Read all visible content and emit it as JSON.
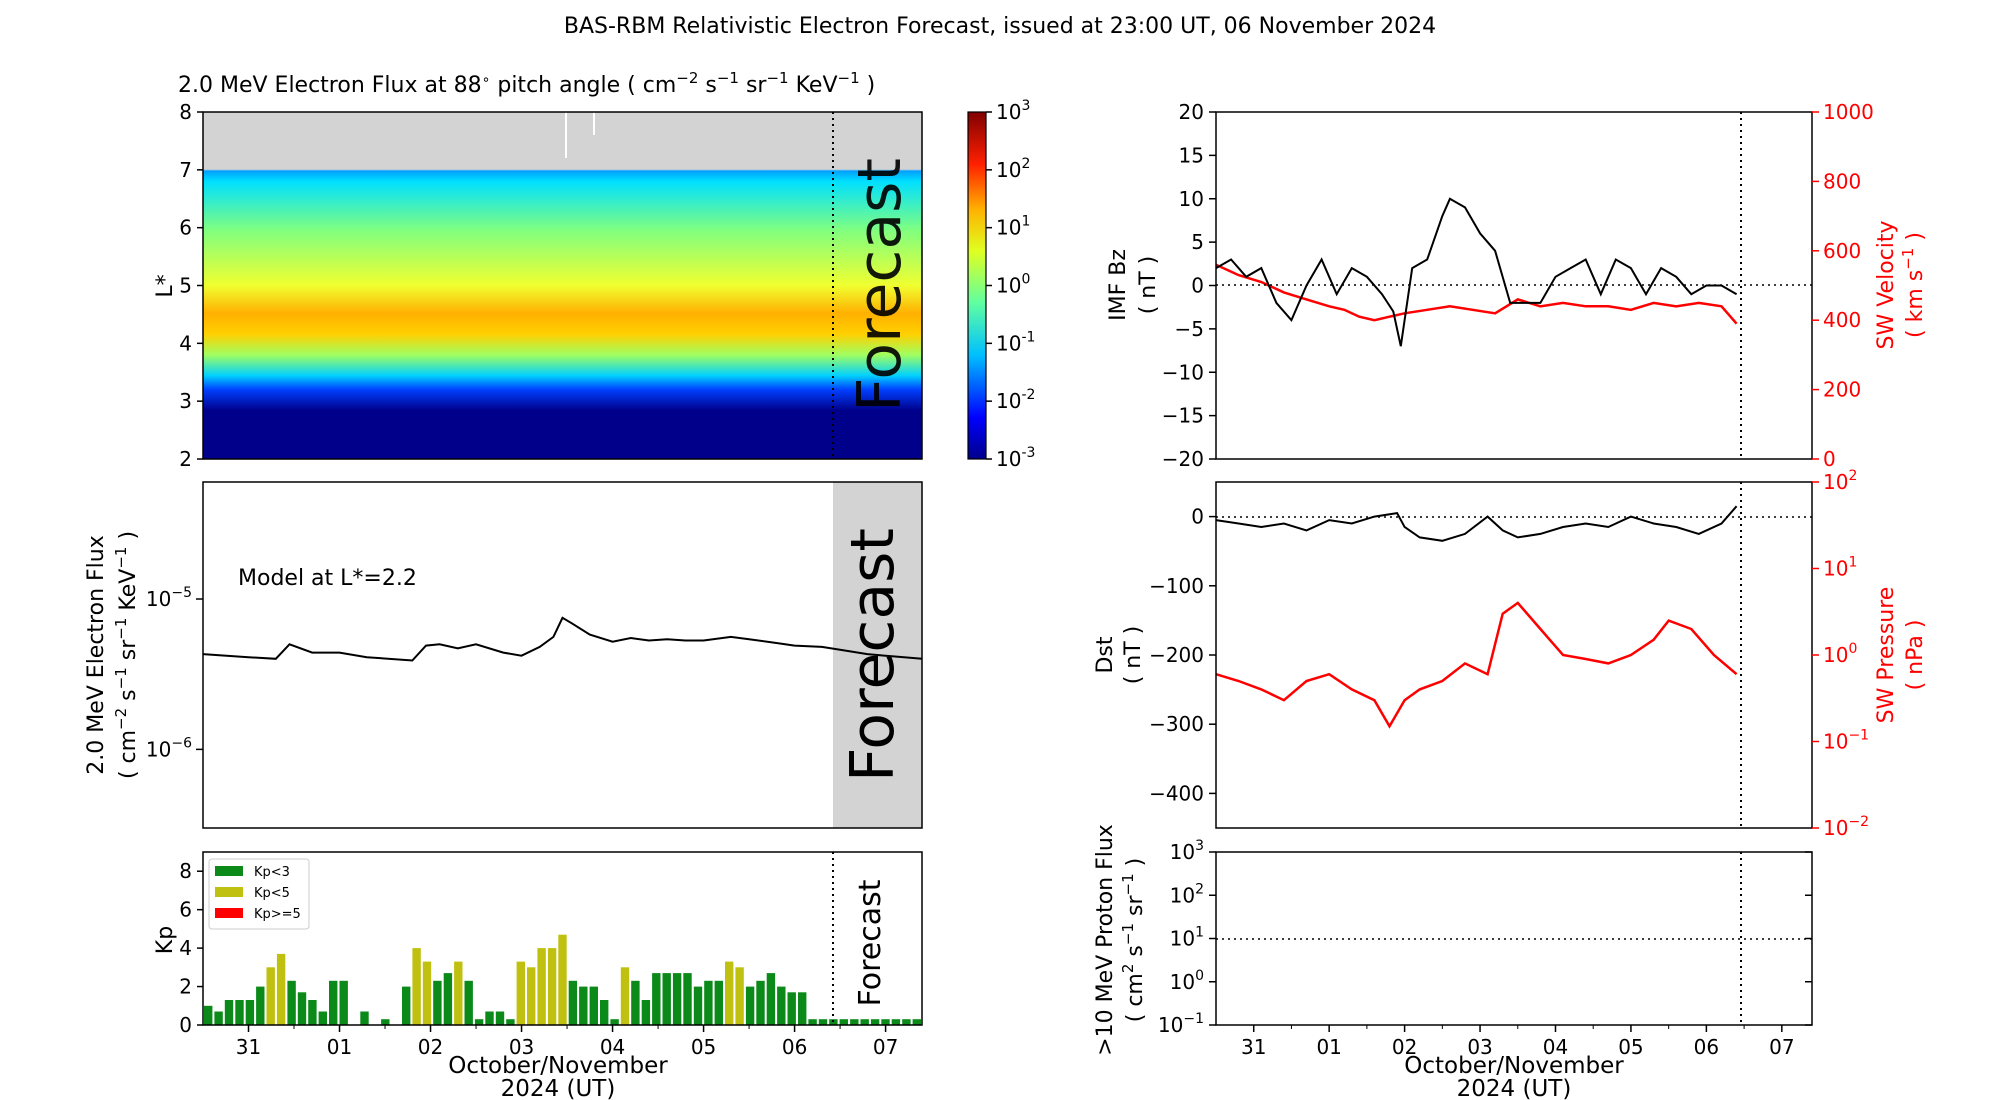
{
  "title": "BAS-RBM Relativistic Electron Forecast, issued at 23:00 UT, 06 November 2024",
  "colors": {
    "kp_low": "#0b8a1a",
    "kp_mid": "#c0c010",
    "kp_high": "#ff0000",
    "sw": "#ff0000",
    "forecast_shade": "#d3d3d3",
    "forecast_text": "#b4b4b4",
    "no_data": "#d3d3d3"
  },
  "time_axis": {
    "tick_labels": [
      "31",
      "01",
      "02",
      "03",
      "04",
      "05",
      "06",
      "07"
    ],
    "xlabel_line1": "October/November",
    "xlabel_line2": "2024 (UT)",
    "forecast_start": 6.5
  },
  "chart_data": [
    {
      "id": "flux_spectrogram",
      "type": "heatmap",
      "title_prefix": "2.0 MeV Electron Flux at 88",
      "title_deg": "∘",
      "title_mid": "pitch angle (",
      "title_unit": "cm",
      "title_end": ")",
      "ylabel": "L*",
      "y_ticks": [
        "2",
        "3",
        "4",
        "5",
        "6",
        "7",
        "8"
      ],
      "ylim": [
        2,
        8
      ],
      "no_data_above_L": 7,
      "forecast_label": "Forecast",
      "colorbar": {
        "scale": "log",
        "range": [
          0.001,
          1000
        ],
        "ticks": [
          "-3",
          "-2",
          "-1",
          "0",
          "1",
          "2",
          "3"
        ],
        "base": "10"
      },
      "notable_levels": [
        {
          "L": 2.5,
          "log10_flux": -3
        },
        {
          "L": 3.3,
          "log10_flux": -1.5
        },
        {
          "L": 4.2,
          "log10_flux": 1.4
        },
        {
          "L": 5.5,
          "log10_flux": 0.5
        },
        {
          "L": 6.9,
          "log10_flux": -0.8
        }
      ]
    },
    {
      "id": "flux_timeseries",
      "type": "line",
      "ylabel_line1": "2.0 MeV Electron Flux",
      "ylabel_line2_prefix": "( cm",
      "ylabel_line2_suffix": ")",
      "yscale": "log",
      "ylim": [
        3e-07,
        6e-05
      ],
      "y_ticks": [
        {
          "base": "10",
          "exp": "−5",
          "value": 1e-05
        },
        {
          "base": "10",
          "exp": "−6",
          "value": 1e-06
        }
      ],
      "annotation": "Model at L*=2.2",
      "forecast_label": "Forecast",
      "x": [
        -0.5,
        0.0,
        0.3,
        0.45,
        0.7,
        1.0,
        1.3,
        1.8,
        1.95,
        2.1,
        2.3,
        2.5,
        2.8,
        3.0,
        3.2,
        3.35,
        3.45,
        3.55,
        3.75,
        4.0,
        4.2,
        4.4,
        4.6,
        4.8,
        5.0,
        5.3,
        5.5,
        5.8,
        6.0,
        6.3,
        6.5,
        6.8,
        7.0,
        7.4
      ],
      "y": [
        4.3e-06,
        4.1e-06,
        4e-06,
        5e-06,
        4.4e-06,
        4.4e-06,
        4.1e-06,
        3.9e-06,
        4.9e-06,
        5e-06,
        4.7e-06,
        5e-06,
        4.4e-06,
        4.2e-06,
        4.8e-06,
        5.6e-06,
        7.5e-06,
        6.9e-06,
        5.8e-06,
        5.2e-06,
        5.5e-06,
        5.3e-06,
        5.4e-06,
        5.3e-06,
        5.3e-06,
        5.6e-06,
        5.4e-06,
        5.1e-06,
        4.9e-06,
        4.8e-06,
        4.6e-06,
        4.3e-06,
        4.2e-06,
        4e-06
      ]
    },
    {
      "id": "kp",
      "type": "bar",
      "ylabel": "Kp",
      "ylim": [
        0,
        9
      ],
      "y_ticks": [
        "0",
        "2",
        "4",
        "6",
        "8"
      ],
      "legend": [
        "Kp<3",
        "Kp<5",
        "Kp>=5"
      ],
      "forecast_label": "Forecast",
      "values": [
        1.0,
        0.7,
        1.3,
        1.3,
        1.3,
        2.0,
        3.0,
        3.7,
        2.3,
        1.7,
        1.3,
        0.7,
        2.3,
        2.3,
        0.0,
        0.7,
        0.0,
        0.3,
        0.0,
        2.0,
        4.0,
        3.3,
        2.3,
        2.7,
        3.3,
        2.3,
        0.3,
        0.7,
        0.7,
        0.3,
        3.3,
        3.0,
        4.0,
        4.0,
        4.7,
        2.3,
        2.0,
        2.0,
        1.3,
        0.3,
        3.0,
        2.3,
        1.3,
        2.7,
        2.7,
        2.7,
        2.7,
        2.0,
        2.3,
        2.3,
        3.3,
        3.0,
        2.0,
        2.3,
        2.7,
        2.0,
        1.7,
        1.7,
        0.3,
        0.3,
        0.3,
        0.3,
        0.3,
        0.3,
        0.3,
        0.3,
        0.3,
        0.3,
        0.3
      ]
    },
    {
      "id": "imf_sw",
      "type": "line",
      "ylabel_left_line1": "IMF Bz",
      "ylabel_left_line2": "( nT )",
      "ylabel_right_line1": "SW Velocity",
      "ylabel_right_line2_prefix": "( km s",
      "ylabel_right_line2_suffix": ")",
      "ylim_left": [
        -20,
        20
      ],
      "ylim_right": [
        0,
        1000
      ],
      "y_ticks_left": [
        "20",
        "15",
        "10",
        "5",
        "0",
        "−5",
        "−10",
        "−15",
        "−20"
      ],
      "y_ticks_right": [
        "1000",
        "800",
        "600",
        "400",
        "200",
        "0"
      ],
      "series": [
        {
          "axis": "left",
          "x": [
            -0.5,
            -0.3,
            -0.1,
            0.1,
            0.3,
            0.5,
            0.7,
            0.9,
            1.1,
            1.3,
            1.5,
            1.7,
            1.85,
            1.95,
            2.1,
            2.3,
            2.5,
            2.6,
            2.8,
            3.0,
            3.2,
            3.4,
            3.6,
            3.8,
            4.0,
            4.2,
            4.4,
            4.6,
            4.8,
            5.0,
            5.2,
            5.4,
            5.6,
            5.8,
            6.0,
            6.2,
            6.4
          ],
          "y": [
            2,
            3,
            1,
            2,
            -2,
            -4,
            0,
            3,
            -1,
            2,
            1,
            -1,
            -3,
            -7,
            2,
            3,
            8,
            10,
            9,
            6,
            4,
            -2,
            -2,
            -2,
            1,
            2,
            3,
            -1,
            3,
            2,
            -1,
            2,
            1,
            -1,
            0,
            0,
            -1
          ]
        },
        {
          "axis": "right",
          "x": [
            -0.5,
            -0.2,
            0.1,
            0.4,
            0.7,
            1.0,
            1.2,
            1.4,
            1.6,
            1.8,
            2.0,
            2.3,
            2.6,
            2.9,
            3.2,
            3.5,
            3.8,
            4.1,
            4.4,
            4.7,
            5.0,
            5.3,
            5.6,
            5.9,
            6.2,
            6.4
          ],
          "y": [
            560,
            530,
            510,
            480,
            460,
            440,
            430,
            410,
            400,
            410,
            420,
            430,
            440,
            430,
            420,
            460,
            440,
            450,
            440,
            440,
            430,
            450,
            440,
            450,
            440,
            390
          ]
        }
      ]
    },
    {
      "id": "dst_pressure",
      "type": "line",
      "ylabel_left_line1": "Dst",
      "ylabel_left_line2": "( nT )",
      "ylabel_right_line1": "SW Pressure",
      "ylabel_right_line2": "( nPa )",
      "ylim_left": [
        -450,
        50
      ],
      "yscale_right": "log",
      "ylim_right": [
        0.01,
        100
      ],
      "y_ticks_left": [
        "0",
        "−100",
        "−200",
        "−300",
        "−400"
      ],
      "y_ticks_right_exp": [
        "2",
        "1",
        "0",
        "−1",
        "−2"
      ],
      "series": [
        {
          "axis": "left",
          "x": [
            -0.5,
            -0.2,
            0.1,
            0.4,
            0.7,
            1.0,
            1.3,
            1.6,
            1.9,
            2.0,
            2.2,
            2.5,
            2.8,
            3.1,
            3.3,
            3.5,
            3.8,
            4.1,
            4.4,
            4.7,
            5.0,
            5.3,
            5.6,
            5.9,
            6.2,
            6.4
          ],
          "y": [
            -5,
            -10,
            -15,
            -10,
            -20,
            -5,
            -10,
            0,
            5,
            -15,
            -30,
            -35,
            -25,
            0,
            -20,
            -30,
            -25,
            -15,
            -10,
            -15,
            0,
            -10,
            -15,
            -25,
            -10,
            15
          ]
        },
        {
          "axis": "right",
          "x": [
            -0.5,
            -0.2,
            0.1,
            0.4,
            0.7,
            1.0,
            1.3,
            1.6,
            1.8,
            2.0,
            2.2,
            2.5,
            2.8,
            3.1,
            3.3,
            3.5,
            3.8,
            4.1,
            4.4,
            4.7,
            5.0,
            5.3,
            5.5,
            5.8,
            6.1,
            6.4
          ],
          "y": [
            0.6,
            0.5,
            0.4,
            0.3,
            0.5,
            0.6,
            0.4,
            0.3,
            0.15,
            0.3,
            0.4,
            0.5,
            0.8,
            0.6,
            3.0,
            4.0,
            2.0,
            1.0,
            0.9,
            0.8,
            1.0,
            1.5,
            2.5,
            2.0,
            1.0,
            0.6
          ]
        }
      ]
    },
    {
      "id": "proton_flux",
      "type": "line",
      "ylabel_line1": ">10 MeV Proton Flux",
      "ylabel_line2_prefix": "( cm",
      "ylabel_line2_suffix": ")",
      "yscale": "log",
      "ylim": [
        0.1,
        1000
      ],
      "y_ticks_exp": [
        "3",
        "2",
        "1",
        "0",
        "−1"
      ],
      "threshold": 10
    }
  ]
}
